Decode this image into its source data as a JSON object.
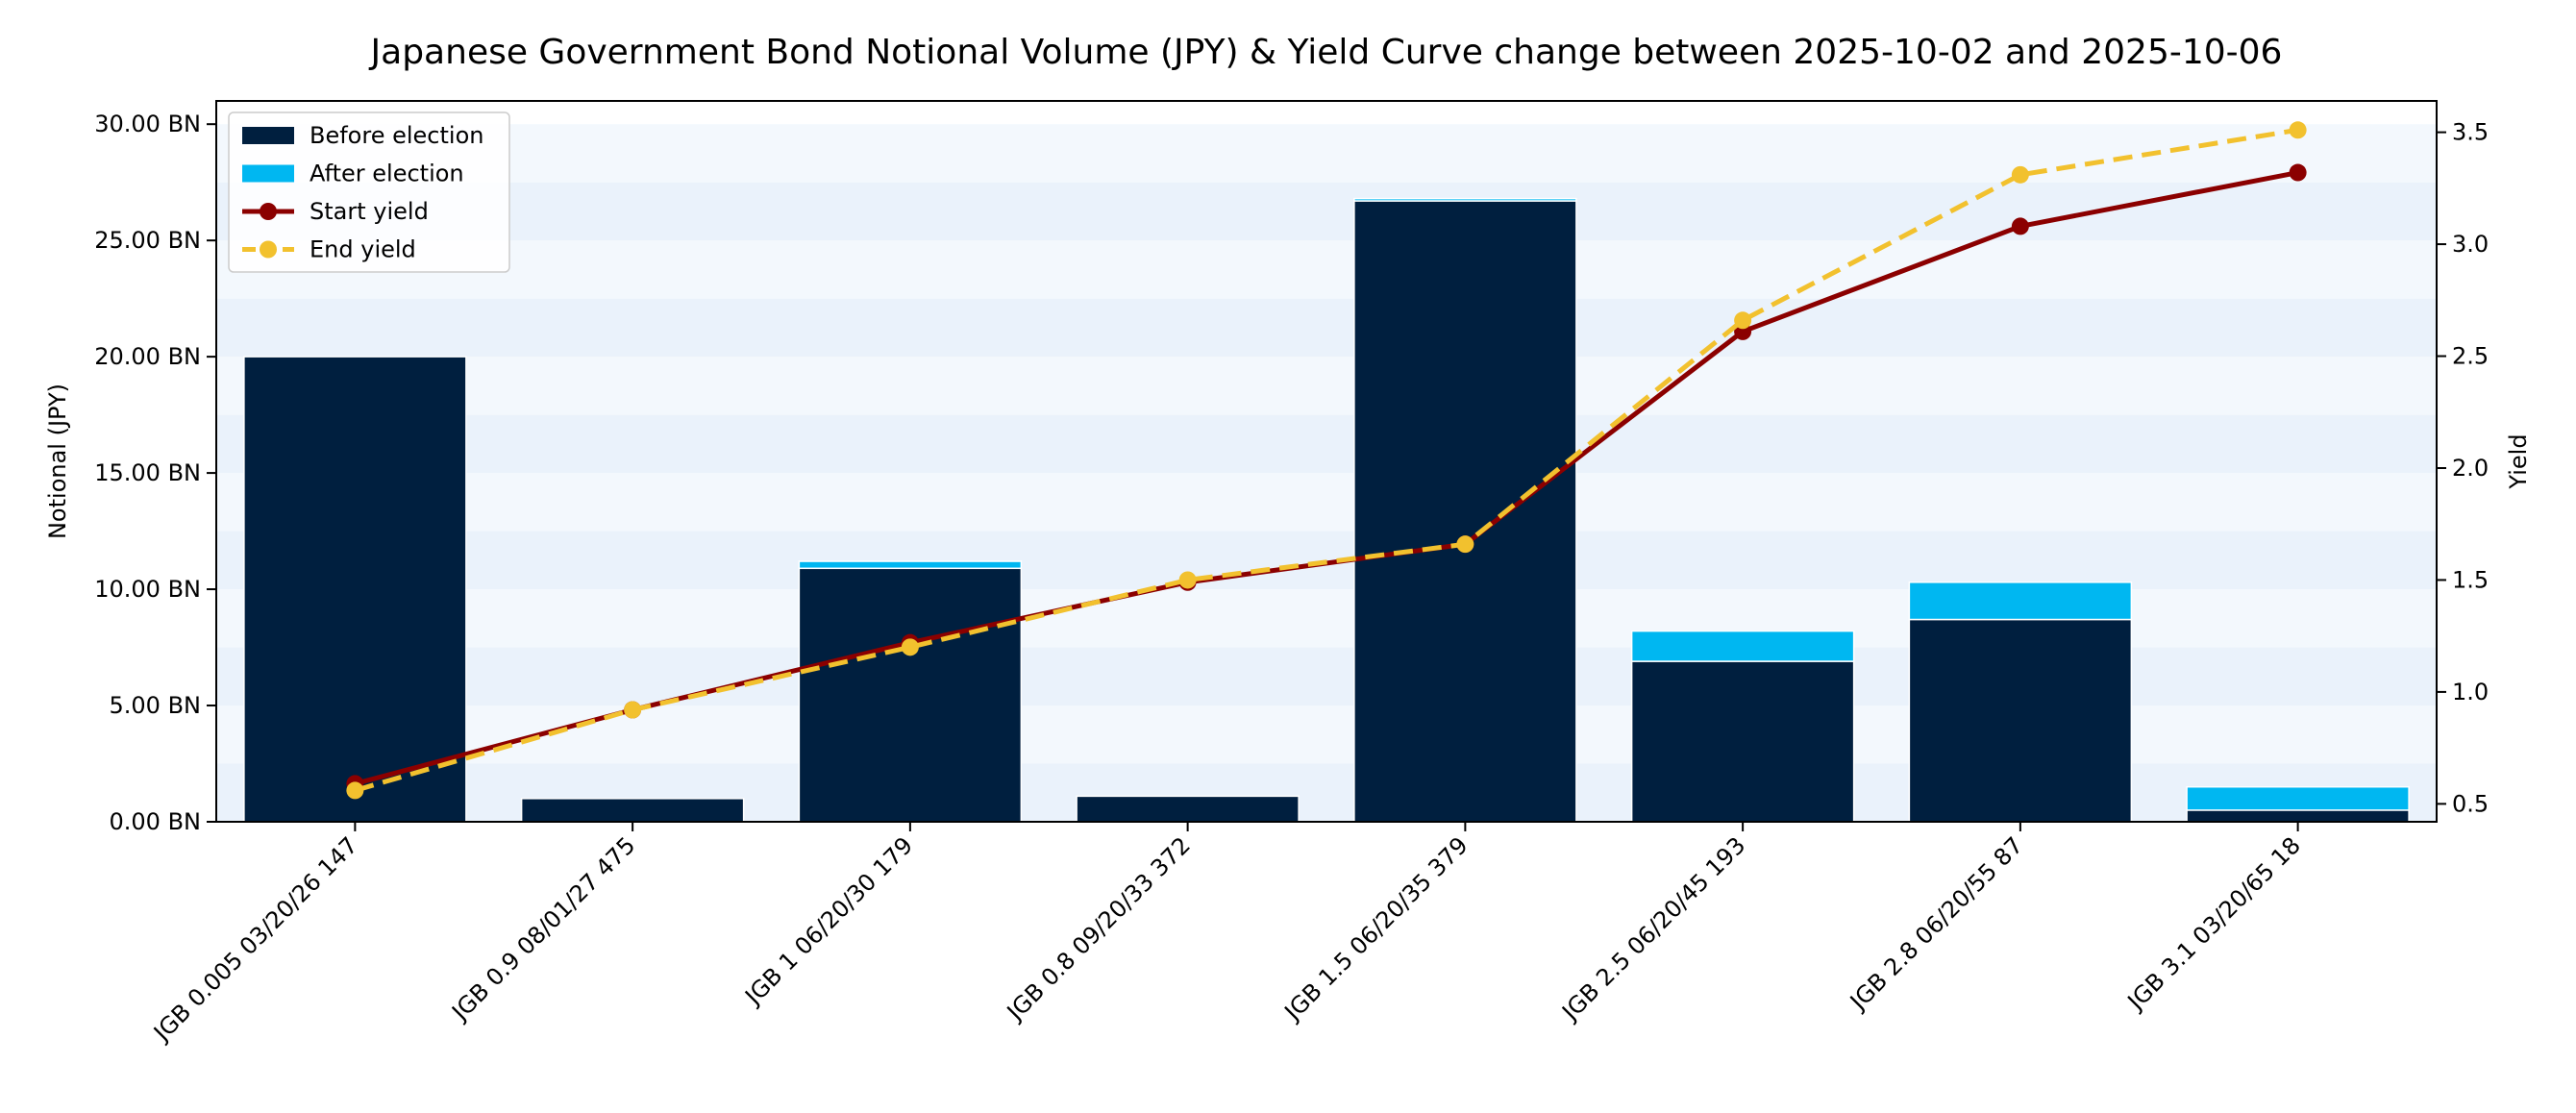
{
  "chart_data": {
    "type": "bar",
    "title": "Japanese Government Bond Notional Volume (JPY) & Yield Curve change between 2025-10-02 and 2025-10-06",
    "ylabel_left": "Notional (JPY)",
    "ylabel_right": "Yield",
    "categories": [
      "JGB 0.005 03/20/26 147",
      "JGB 0.9 08/01/27 475",
      "JGB 1 06/20/30 179",
      "JGB 0.8 09/20/33 372",
      "JGB 1.5 06/20/35 379",
      "JGB 2.5 06/20/45 193",
      "JGB 2.8 06/20/55 87",
      "JGB 3.1 03/20/65 18"
    ],
    "bar_series": [
      {
        "name": "Before election",
        "color": "#001f3f",
        "values": [
          20.0,
          1.0,
          10.9,
          1.1,
          26.7,
          6.9,
          8.7,
          0.5
        ]
      },
      {
        "name": "After election",
        "color": "#00b7f1",
        "values": [
          0.0,
          0.0,
          0.3,
          0.0,
          0.1,
          1.3,
          1.6,
          1.0
        ]
      }
    ],
    "line_series": [
      {
        "name": "Start yield",
        "color": "#8b0000",
        "style": "solid",
        "values": [
          0.59,
          0.92,
          1.22,
          1.49,
          1.66,
          2.61,
          3.08,
          3.32
        ]
      },
      {
        "name": "End yield",
        "color": "#f2c12e",
        "style": "dashed",
        "values": [
          0.56,
          0.92,
          1.2,
          1.5,
          1.66,
          2.66,
          3.31,
          3.51
        ]
      }
    ],
    "ylim_left": [
      0,
      31
    ],
    "yticks_left": [
      0,
      5,
      10,
      15,
      20,
      25,
      30
    ],
    "ytick_labels_left": [
      "0.00 BN",
      "5.00 BN",
      "10.00 BN",
      "15.00 BN",
      "20.00 BN",
      "25.00 BN",
      "30.00 BN"
    ],
    "ylim_right": [
      0.42,
      3.64
    ],
    "yticks_right": [
      0.5,
      1.0,
      1.5,
      2.0,
      2.5,
      3.0,
      3.5
    ],
    "ytick_labels_right": [
      "0.5",
      "1.0",
      "1.5",
      "2.0",
      "2.5",
      "3.0",
      "3.5"
    ],
    "legend_position": "top-left",
    "band_colors": [
      "#eaf2fb",
      "#f3f8fd"
    ]
  }
}
